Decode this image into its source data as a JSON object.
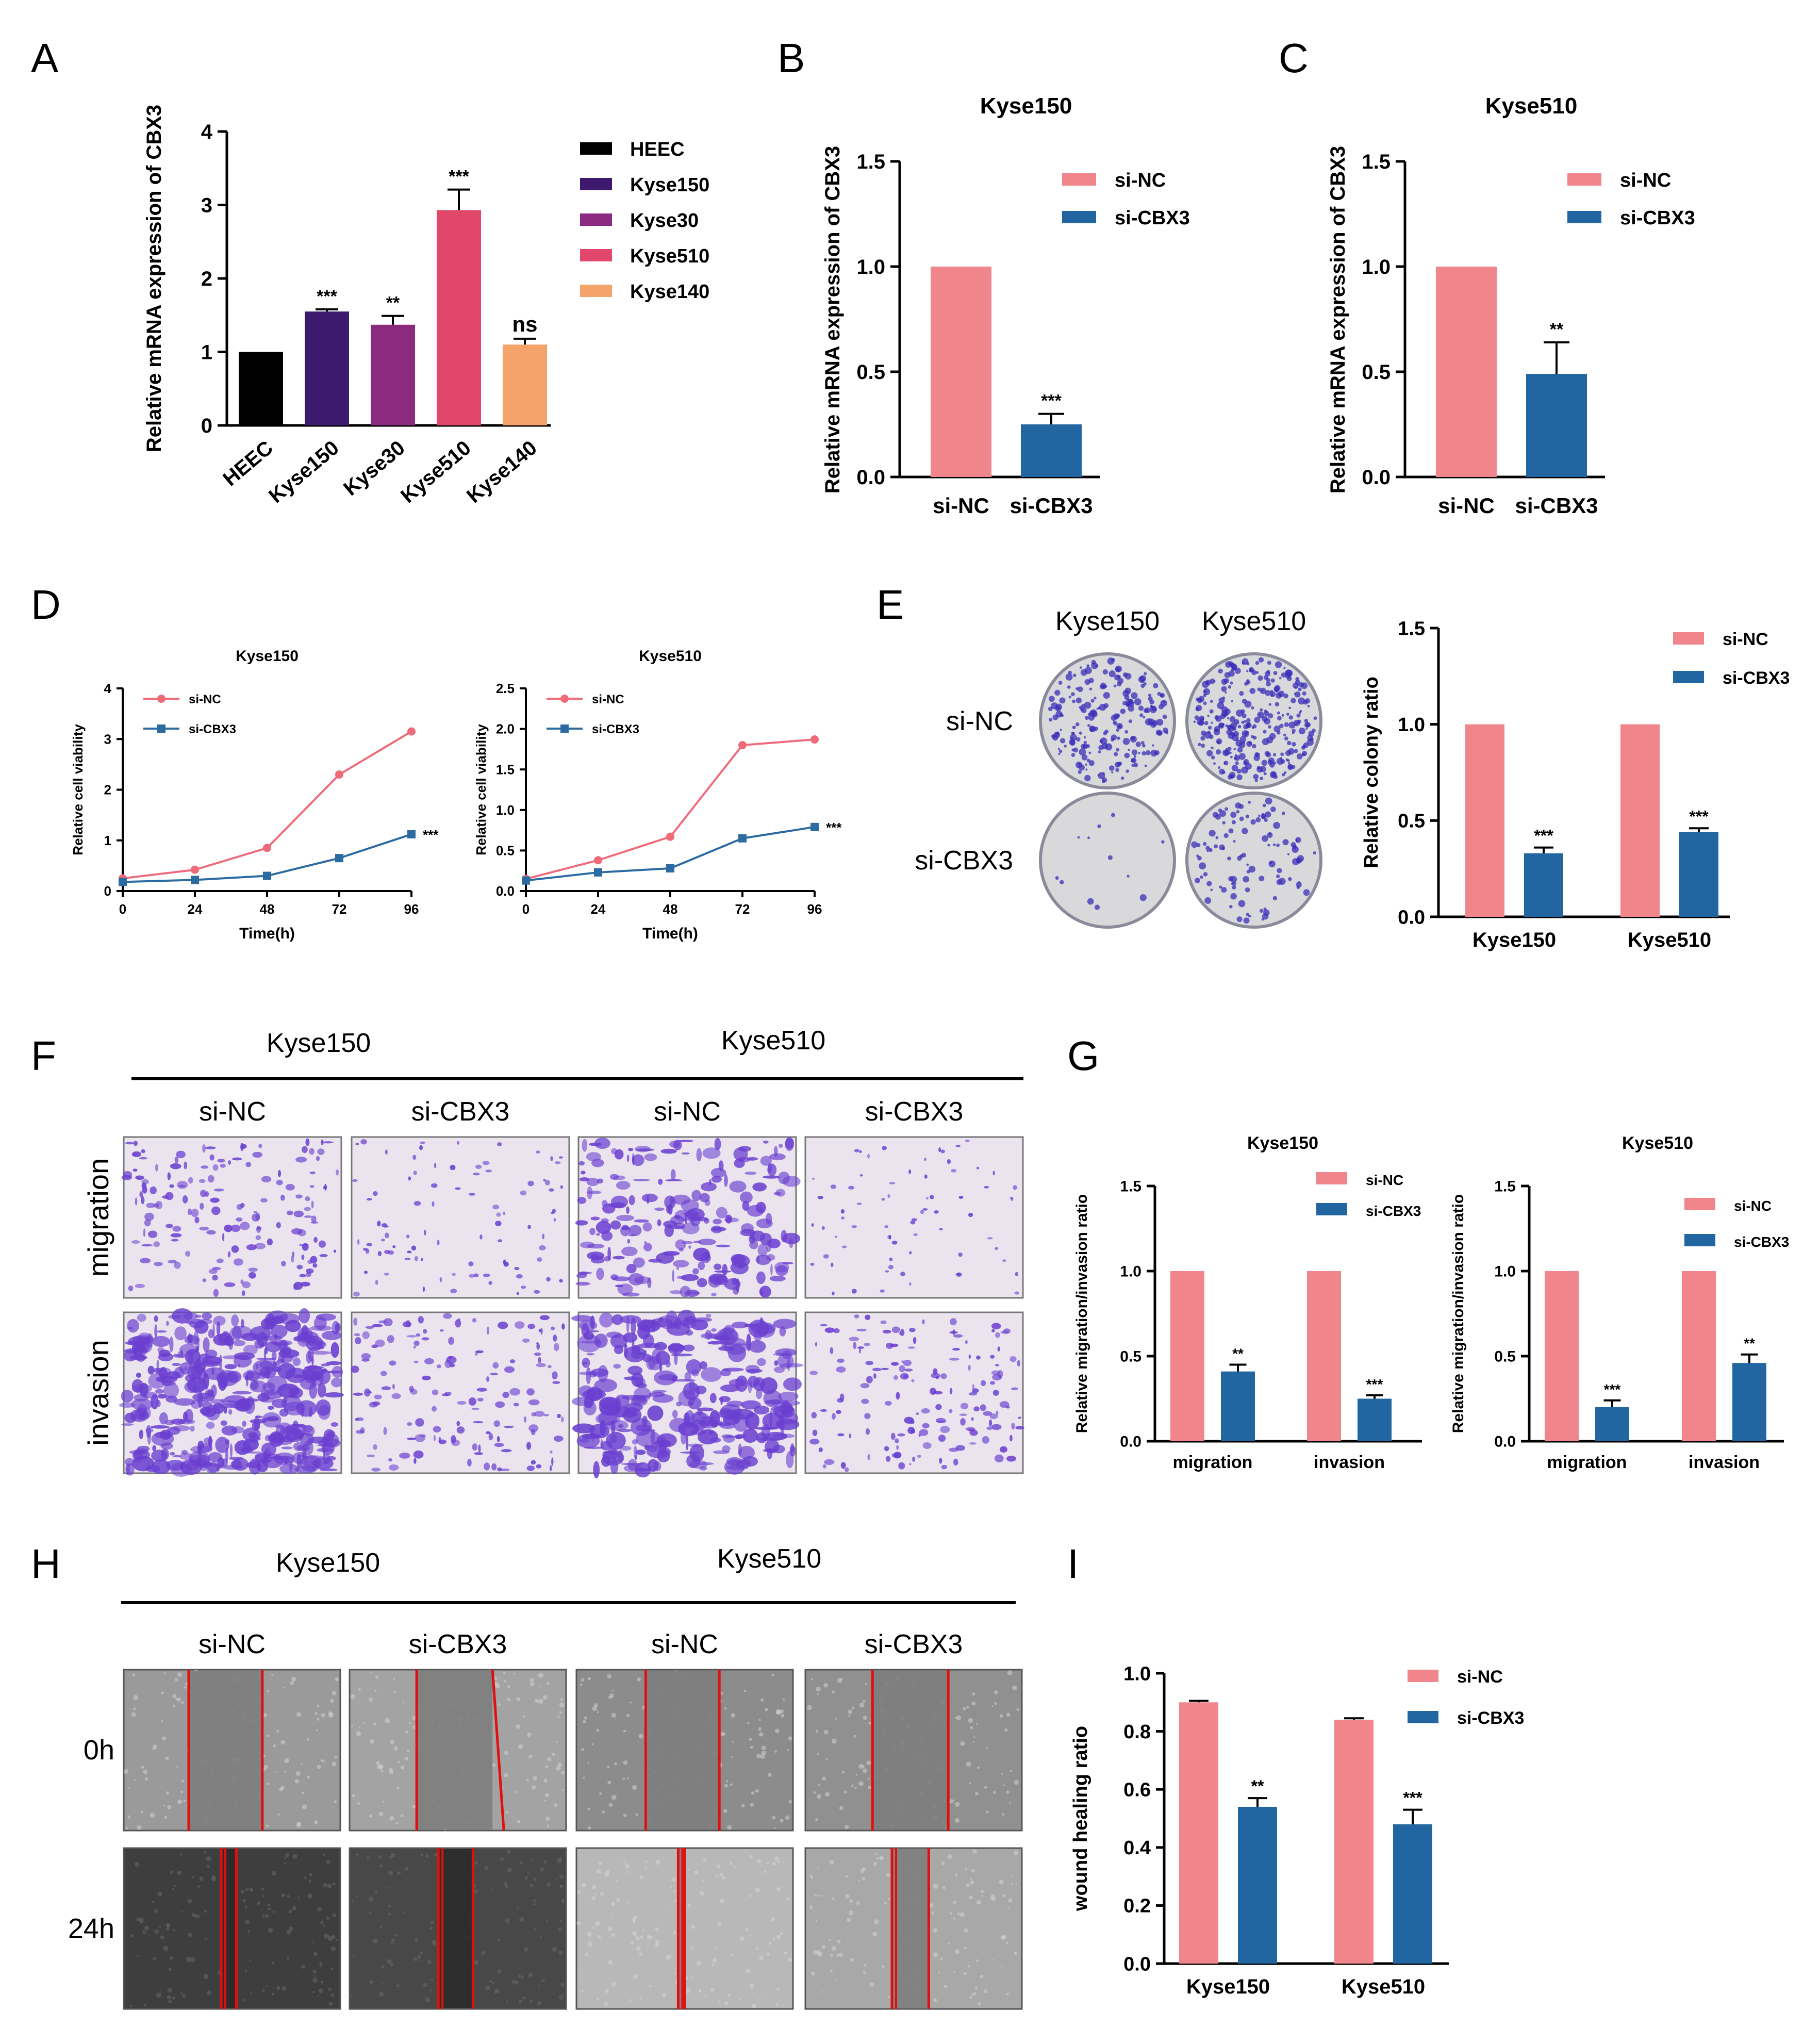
{
  "colors": {
    "heec": "#000000",
    "kyse150": "#3d1a6e",
    "kyse30": "#8b2a7e",
    "kyse510": "#e0476b",
    "kyse140": "#f4a46a",
    "si_nc": "#f0868c",
    "si_cbx3": "#2166a0",
    "line_nc": "#ef6b7a",
    "line_cbx3": "#2c6aa2",
    "stain": "#6a3fd0",
    "micro_bg_light": "#8a8a8a",
    "micro_bg_dark": "#4a4a4a"
  },
  "panel_labels": [
    "A",
    "B",
    "C",
    "D",
    "E",
    "F",
    "G",
    "H",
    "I"
  ],
  "images": {
    "E": {
      "cols": [
        "Kyse150",
        "Kyse510"
      ],
      "rows": [
        "si-NC",
        "si-CBX3"
      ]
    },
    "F": {
      "cell_lines": [
        "Kyse150",
        "Kyse510"
      ],
      "cols": [
        "si-NC",
        "si-CBX3",
        "si-NC",
        "si-CBX3"
      ],
      "rows": [
        "migration",
        "invasion"
      ]
    },
    "H": {
      "cell_lines": [
        "Kyse150",
        "Kyse510"
      ],
      "cols": [
        "si-NC",
        "si-CBX3",
        "si-NC",
        "si-CBX3"
      ],
      "rows": [
        "0h",
        "24h"
      ]
    }
  },
  "chart_data": [
    {
      "id": "A",
      "type": "bar",
      "title": "",
      "ylabel": "Relative mRNA expression  of CBX3",
      "xlabel": "",
      "ylim": [
        0,
        4
      ],
      "yticks": [
        0,
        1,
        2,
        3,
        4
      ],
      "categories": [
        "HEEC",
        "Kyse150",
        "Kyse30",
        "Kyse510",
        "Kyse140"
      ],
      "values": [
        1.0,
        1.55,
        1.37,
        2.93,
        1.1
      ],
      "errors": [
        0,
        0.03,
        0.12,
        0.28,
        0.08
      ],
      "significance": [
        "",
        "***",
        "**",
        "***",
        "ns"
      ],
      "bar_color_keys": [
        "heec",
        "kyse150",
        "kyse30",
        "kyse510",
        "kyse140"
      ],
      "legend": [
        "HEEC",
        "Kyse150",
        "Kyse30",
        "Kyse510",
        "Kyse140"
      ]
    },
    {
      "id": "B",
      "type": "bar",
      "title": "Kyse150",
      "ylabel": "Relative mRNA expression  of CBX3",
      "xlabel": "",
      "ylim": [
        0,
        1.5
      ],
      "yticks": [
        "0.0",
        "0.5",
        "1.0",
        "1.5"
      ],
      "categories": [
        "si-NC",
        "si-CBX3"
      ],
      "values": [
        1.0,
        0.25
      ],
      "errors": [
        0,
        0.05
      ],
      "significance": [
        "",
        "***"
      ],
      "legend": [
        "si-NC",
        "si-CBX3"
      ]
    },
    {
      "id": "C",
      "type": "bar",
      "title": "Kyse510",
      "ylabel": "Relative mRNA expression  of CBX3",
      "xlabel": "",
      "ylim": [
        0,
        1.5
      ],
      "yticks": [
        "0.0",
        "0.5",
        "1.0",
        "1.5"
      ],
      "categories": [
        "si-NC",
        "si-CBX3"
      ],
      "values": [
        1.0,
        0.49
      ],
      "errors": [
        0,
        0.15
      ],
      "significance": [
        "",
        "**"
      ],
      "legend": [
        "si-NC",
        "si-CBX3"
      ]
    },
    {
      "id": "D1",
      "type": "line",
      "title": "Kyse150",
      "xlabel": "Time(h)",
      "ylabel": "Relative cell viability",
      "x": [
        0,
        24,
        48,
        72,
        96
      ],
      "xlim": [
        0,
        96
      ],
      "ylim": [
        0,
        4
      ],
      "yticks": [
        "0",
        "1",
        "2",
        "3",
        "4"
      ],
      "series": [
        {
          "name": "si-NC",
          "values": [
            0.25,
            0.42,
            0.85,
            2.3,
            3.15
          ]
        },
        {
          "name": "si-CBX3",
          "values": [
            0.18,
            0.22,
            0.3,
            0.65,
            1.12
          ]
        }
      ],
      "annotation": "***"
    },
    {
      "id": "D2",
      "type": "line",
      "title": "Kyse510",
      "xlabel": "Time(h)",
      "ylabel": "Relative cell viability",
      "x": [
        0,
        24,
        48,
        72,
        96
      ],
      "xlim": [
        0,
        96
      ],
      "ylim": [
        0,
        2.5
      ],
      "yticks": [
        "0.0",
        "0.5",
        "1.0",
        "1.5",
        "2.0",
        "2.5"
      ],
      "series": [
        {
          "name": "si-NC",
          "values": [
            0.15,
            0.38,
            0.67,
            1.8,
            1.87
          ]
        },
        {
          "name": "si-CBX3",
          "values": [
            0.13,
            0.23,
            0.28,
            0.65,
            0.79
          ]
        }
      ],
      "annotation": "***"
    },
    {
      "id": "E",
      "type": "bar",
      "title": "",
      "ylabel": "Relative colony ratio",
      "xlabel": "",
      "ylim": [
        0,
        1.5
      ],
      "yticks": [
        "0.0",
        "0.5",
        "1.0",
        "1.5"
      ],
      "categories": [
        "Kyse150",
        "Kyse510"
      ],
      "series": [
        {
          "name": "si-NC",
          "values": [
            1.0,
            1.0
          ],
          "errors": [
            0,
            0
          ],
          "significance": [
            "",
            ""
          ]
        },
        {
          "name": "si-CBX3",
          "values": [
            0.33,
            0.44
          ],
          "errors": [
            0.03,
            0.02
          ],
          "significance": [
            "***",
            "***"
          ]
        }
      ]
    },
    {
      "id": "G1",
      "type": "bar",
      "title": "Kyse150",
      "ylabel": "Relative migration/invasion ratio",
      "xlabel": "",
      "ylim": [
        0,
        1.5
      ],
      "yticks": [
        "0.0",
        "0.5",
        "1.0",
        "1.5"
      ],
      "categories": [
        "migration",
        "invasion"
      ],
      "series": [
        {
          "name": "si-NC",
          "values": [
            1.0,
            1.0
          ],
          "errors": [
            0,
            0
          ],
          "significance": [
            "",
            ""
          ]
        },
        {
          "name": "si-CBX3",
          "values": [
            0.41,
            0.25
          ],
          "errors": [
            0.04,
            0.02
          ],
          "significance": [
            "**",
            "***"
          ]
        }
      ]
    },
    {
      "id": "G2",
      "type": "bar",
      "title": "Kyse510",
      "ylabel": "Relative migration/invasion ratio",
      "xlabel": "",
      "ylim": [
        0,
        1.5
      ],
      "yticks": [
        "0.0",
        "0.5",
        "1.0",
        "1.5"
      ],
      "categories": [
        "migration",
        "invasion"
      ],
      "series": [
        {
          "name": "si-NC",
          "values": [
            1.0,
            1.0
          ],
          "errors": [
            0,
            0
          ],
          "significance": [
            "",
            ""
          ]
        },
        {
          "name": "si-CBX3",
          "values": [
            0.2,
            0.46
          ],
          "errors": [
            0.04,
            0.05
          ],
          "significance": [
            "***",
            "**"
          ]
        }
      ]
    },
    {
      "id": "I",
      "type": "bar",
      "title": "",
      "ylabel": "wound healing ratio",
      "xlabel": "",
      "ylim": [
        0,
        1.0
      ],
      "yticks": [
        "0.0",
        "0.2",
        "0.4",
        "0.6",
        "0.8",
        "1.0"
      ],
      "categories": [
        "Kyse150",
        "Kyse510"
      ],
      "series": [
        {
          "name": "si-NC",
          "values": [
            0.9,
            0.84
          ],
          "errors": [
            0.005,
            0.005
          ],
          "significance": [
            "",
            ""
          ]
        },
        {
          "name": "si-CBX3",
          "values": [
            0.54,
            0.48
          ],
          "errors": [
            0.03,
            0.05
          ],
          "significance": [
            "**",
            "***"
          ]
        }
      ]
    }
  ]
}
